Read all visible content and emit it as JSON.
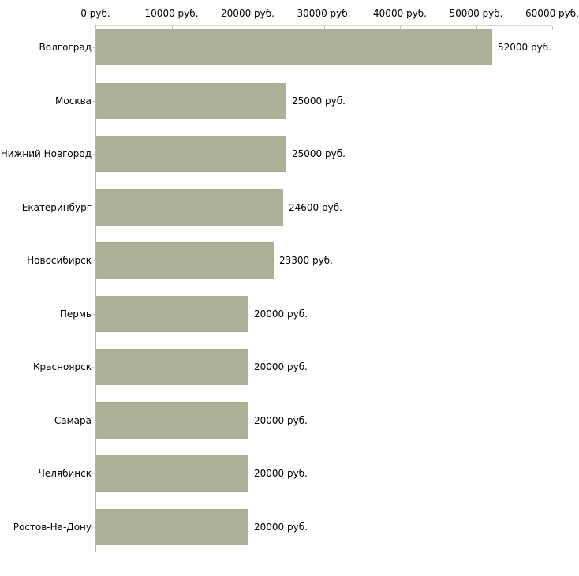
{
  "chart_data": {
    "type": "bar",
    "orientation": "horizontal",
    "title": "",
    "categories": [
      "Волгоград",
      "Москва",
      "Нижний Новгород",
      "Екатеринбург",
      "Новосибирск",
      "Пермь",
      "Красноярск",
      "Самара",
      "Челябинск",
      "Ростов-На-Дону"
    ],
    "values": [
      52000,
      25000,
      25000,
      24600,
      23300,
      20000,
      20000,
      20000,
      20000,
      20000
    ],
    "value_labels": [
      "52000 руб.",
      "25000 руб.",
      "25000 руб.",
      "24600 руб.",
      "23300 руб.",
      "20000 руб.",
      "20000 руб.",
      "20000 руб.",
      "20000 руб.",
      "20000 руб."
    ],
    "x_axis": {
      "position": "top",
      "min": 0,
      "max": 60000,
      "ticks": [
        0,
        10000,
        20000,
        30000,
        40000,
        50000,
        60000
      ],
      "tick_labels": [
        "0 руб.",
        "10000 руб.",
        "20000 руб.",
        "30000 руб.",
        "40000 руб.",
        "50000 руб.",
        "60000 руб."
      ]
    },
    "legend": null,
    "grid": false,
    "colors": {
      "bar_fill": "#abb097",
      "x_axis_line": "#d9d9c8",
      "x_tick_mark": "#c5c5a6",
      "y_axis_line": "#b3b3b3",
      "y_tick_mark": "#d9d9c8",
      "text": "#000000",
      "background": "#ffffff"
    }
  }
}
